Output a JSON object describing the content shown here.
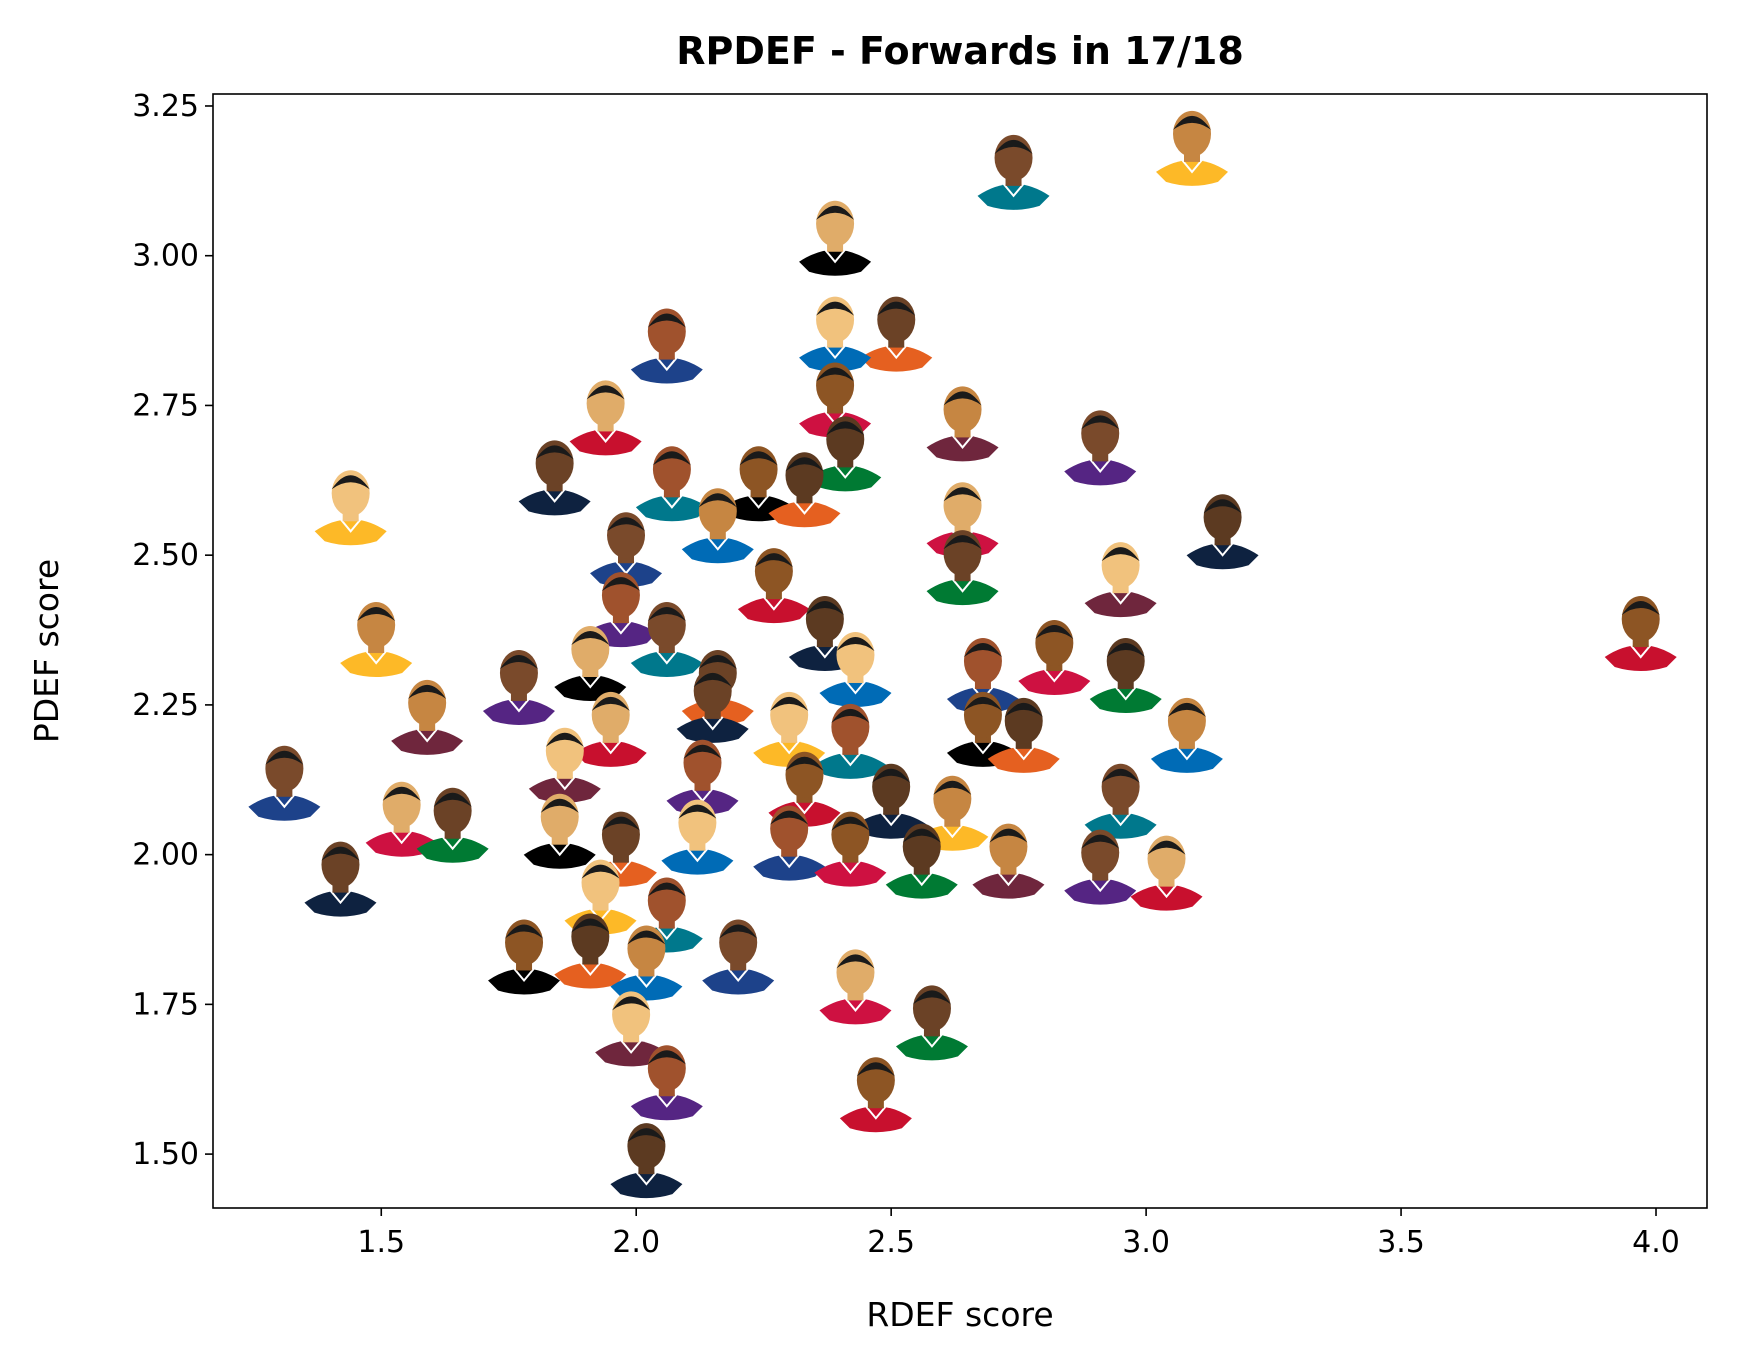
{
  "chart_data": {
    "type": "scatter",
    "title": "RPDEF - Forwards in 17/18",
    "xlabel": "RDEF score",
    "ylabel": "PDEF score",
    "xlim": [
      1.17,
      4.1
    ],
    "ylim": [
      1.41,
      3.27
    ],
    "xticks": [
      "1.5",
      "2.0",
      "2.5",
      "3.0",
      "3.5",
      "4.0"
    ],
    "yticks": [
      "1.50",
      "1.75",
      "2.00",
      "2.25",
      "2.50",
      "2.75",
      "3.00",
      "3.25"
    ],
    "grid": false,
    "legend": "none",
    "marker": "player-headshot",
    "marker_colors": [
      "#c8102e",
      "#1d428a",
      "#fdb927",
      "#007a33",
      "#000000",
      "#552583",
      "#006bb6",
      "#0e2240",
      "#ce1141",
      "#00788c",
      "#6f263d",
      "#e56020"
    ],
    "points": [
      {
        "x": 3.97,
        "y": 2.38
      },
      {
        "x": 3.15,
        "y": 2.55
      },
      {
        "x": 3.09,
        "y": 3.19
      },
      {
        "x": 2.74,
        "y": 3.15
      },
      {
        "x": 2.39,
        "y": 3.04
      },
      {
        "x": 2.51,
        "y": 2.88
      },
      {
        "x": 2.39,
        "y": 2.88
      },
      {
        "x": 2.06,
        "y": 2.86
      },
      {
        "x": 2.39,
        "y": 2.77
      },
      {
        "x": 2.41,
        "y": 2.68
      },
      {
        "x": 2.64,
        "y": 2.73
      },
      {
        "x": 2.91,
        "y": 2.69
      },
      {
        "x": 1.94,
        "y": 2.74
      },
      {
        "x": 1.84,
        "y": 2.64
      },
      {
        "x": 1.44,
        "y": 2.59
      },
      {
        "x": 2.07,
        "y": 2.63
      },
      {
        "x": 2.24,
        "y": 2.63
      },
      {
        "x": 2.33,
        "y": 2.62
      },
      {
        "x": 2.16,
        "y": 2.56
      },
      {
        "x": 1.98,
        "y": 2.52
      },
      {
        "x": 2.64,
        "y": 2.57
      },
      {
        "x": 2.64,
        "y": 2.49
      },
      {
        "x": 2.95,
        "y": 2.47
      },
      {
        "x": 1.97,
        "y": 2.42
      },
      {
        "x": 2.27,
        "y": 2.46
      },
      {
        "x": 2.37,
        "y": 2.38
      },
      {
        "x": 1.49,
        "y": 2.37
      },
      {
        "x": 2.06,
        "y": 2.37
      },
      {
        "x": 1.91,
        "y": 2.33
      },
      {
        "x": 2.16,
        "y": 2.29
      },
      {
        "x": 2.43,
        "y": 2.32
      },
      {
        "x": 2.68,
        "y": 2.31
      },
      {
        "x": 2.82,
        "y": 2.34
      },
      {
        "x": 2.96,
        "y": 2.31
      },
      {
        "x": 1.59,
        "y": 2.24
      },
      {
        "x": 1.77,
        "y": 2.29
      },
      {
        "x": 1.95,
        "y": 2.22
      },
      {
        "x": 2.15,
        "y": 2.26
      },
      {
        "x": 2.3,
        "y": 2.22
      },
      {
        "x": 2.42,
        "y": 2.2
      },
      {
        "x": 2.68,
        "y": 2.22
      },
      {
        "x": 2.76,
        "y": 2.21
      },
      {
        "x": 3.08,
        "y": 2.21
      },
      {
        "x": 1.31,
        "y": 2.13
      },
      {
        "x": 1.54,
        "y": 2.07
      },
      {
        "x": 1.64,
        "y": 2.06
      },
      {
        "x": 1.86,
        "y": 2.16
      },
      {
        "x": 2.13,
        "y": 2.14
      },
      {
        "x": 2.33,
        "y": 2.12
      },
      {
        "x": 2.5,
        "y": 2.1
      },
      {
        "x": 2.62,
        "y": 2.08
      },
      {
        "x": 2.95,
        "y": 2.1
      },
      {
        "x": 1.85,
        "y": 2.05
      },
      {
        "x": 1.97,
        "y": 2.02
      },
      {
        "x": 2.12,
        "y": 2.04
      },
      {
        "x": 2.3,
        "y": 2.03
      },
      {
        "x": 2.42,
        "y": 2.02
      },
      {
        "x": 2.56,
        "y": 2.0
      },
      {
        "x": 2.73,
        "y": 2.0
      },
      {
        "x": 2.91,
        "y": 1.99
      },
      {
        "x": 3.04,
        "y": 1.98
      },
      {
        "x": 1.42,
        "y": 1.97
      },
      {
        "x": 1.93,
        "y": 1.94
      },
      {
        "x": 2.06,
        "y": 1.91
      },
      {
        "x": 1.78,
        "y": 1.84
      },
      {
        "x": 1.91,
        "y": 1.85
      },
      {
        "x": 2.02,
        "y": 1.83
      },
      {
        "x": 2.2,
        "y": 1.84
      },
      {
        "x": 2.43,
        "y": 1.79
      },
      {
        "x": 2.58,
        "y": 1.73
      },
      {
        "x": 1.99,
        "y": 1.72
      },
      {
        "x": 2.06,
        "y": 1.63
      },
      {
        "x": 2.47,
        "y": 1.61
      },
      {
        "x": 2.02,
        "y": 1.5
      }
    ]
  }
}
